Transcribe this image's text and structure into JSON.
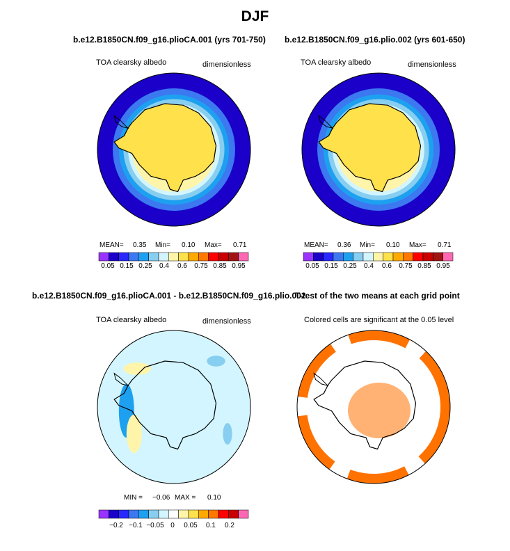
{
  "figure_title": "DJF",
  "palette": {
    "c01": "#9933ff",
    "c02": "#1a00c8",
    "c03": "#2828ff",
    "c04": "#3c78f0",
    "c05": "#1ea0f0",
    "c06": "#87cef0",
    "c07": "#d2f5ff",
    "c08": "#fff5aa",
    "c09": "#ffe14b",
    "c10": "#ffaa00",
    "c11": "#ff7800",
    "c12": "#ff0000",
    "c13": "#c80000",
    "c14": "#a01414",
    "c15": "#ff69b4"
  },
  "significance_color": "#ff7200",
  "chart_data": [
    {
      "type": "heatmap",
      "title": "b.e12.B1850CN.f09_g16.plioCA.001 (yrs 701-750)",
      "variable": "TOA clearsky albedo",
      "units": "dimensionless",
      "stats": {
        "mean_label": "MEAN=",
        "mean": "0.35",
        "min_label": "Min=",
        "min": "0.10",
        "max_label": "Max=",
        "max": "0.71"
      },
      "colorbar": {
        "labels": [
          "0.05",
          "0.15",
          "0.25",
          "0.4",
          "0.6",
          "0.75",
          "0.85",
          "0.95"
        ]
      },
      "bands": [
        {
          "r": 1.0,
          "c": "c02"
        },
        {
          "r": 0.8,
          "c": "c04"
        },
        {
          "r": 0.72,
          "c": "c05"
        },
        {
          "r": 0.66,
          "c": "c06"
        },
        {
          "r": 0.6,
          "c": "c07"
        },
        {
          "r": 0.55,
          "c": "c08"
        }
      ]
    },
    {
      "type": "heatmap",
      "title": "b.e12.B1850CN.f09_g16.plio.002 (yrs 601-650)",
      "variable": "TOA clearsky albedo",
      "units": "dimensionless",
      "stats": {
        "mean_label": "MEAN=",
        "mean": "0.36",
        "min_label": "Min=",
        "min": "0.10",
        "max_label": "Max=",
        "max": "0.71"
      },
      "colorbar": {
        "labels": [
          "0.05",
          "0.15",
          "0.25",
          "0.4",
          "0.6",
          "0.75",
          "0.85",
          "0.95"
        ]
      },
      "bands": [
        {
          "r": 1.0,
          "c": "c02"
        },
        {
          "r": 0.8,
          "c": "c04"
        },
        {
          "r": 0.72,
          "c": "c05"
        },
        {
          "r": 0.66,
          "c": "c06"
        },
        {
          "r": 0.6,
          "c": "c07"
        },
        {
          "r": 0.55,
          "c": "c08"
        }
      ]
    },
    {
      "type": "heatmap",
      "title": "b.e12.B1850CN.f09_g16.plioCA.001 - b.e12.B1850CN.f09_g16.plio.002",
      "variable": "TOA clearsky albedo",
      "units": "dimensionless",
      "stats": {
        "min_label": "MIN =",
        "min": "−0.06",
        "max_label": "MAX =",
        "max": "0.10"
      },
      "colorbar": {
        "labels": [
          "−0.2",
          "−0.1",
          "−0.05",
          "0",
          "0.05",
          "0.1",
          "0.2"
        ]
      }
    },
    {
      "type": "heatmap",
      "title": "T-test of the two means at each grid point",
      "subtitle": "Colored cells are significant at the 0.05 level"
    }
  ]
}
